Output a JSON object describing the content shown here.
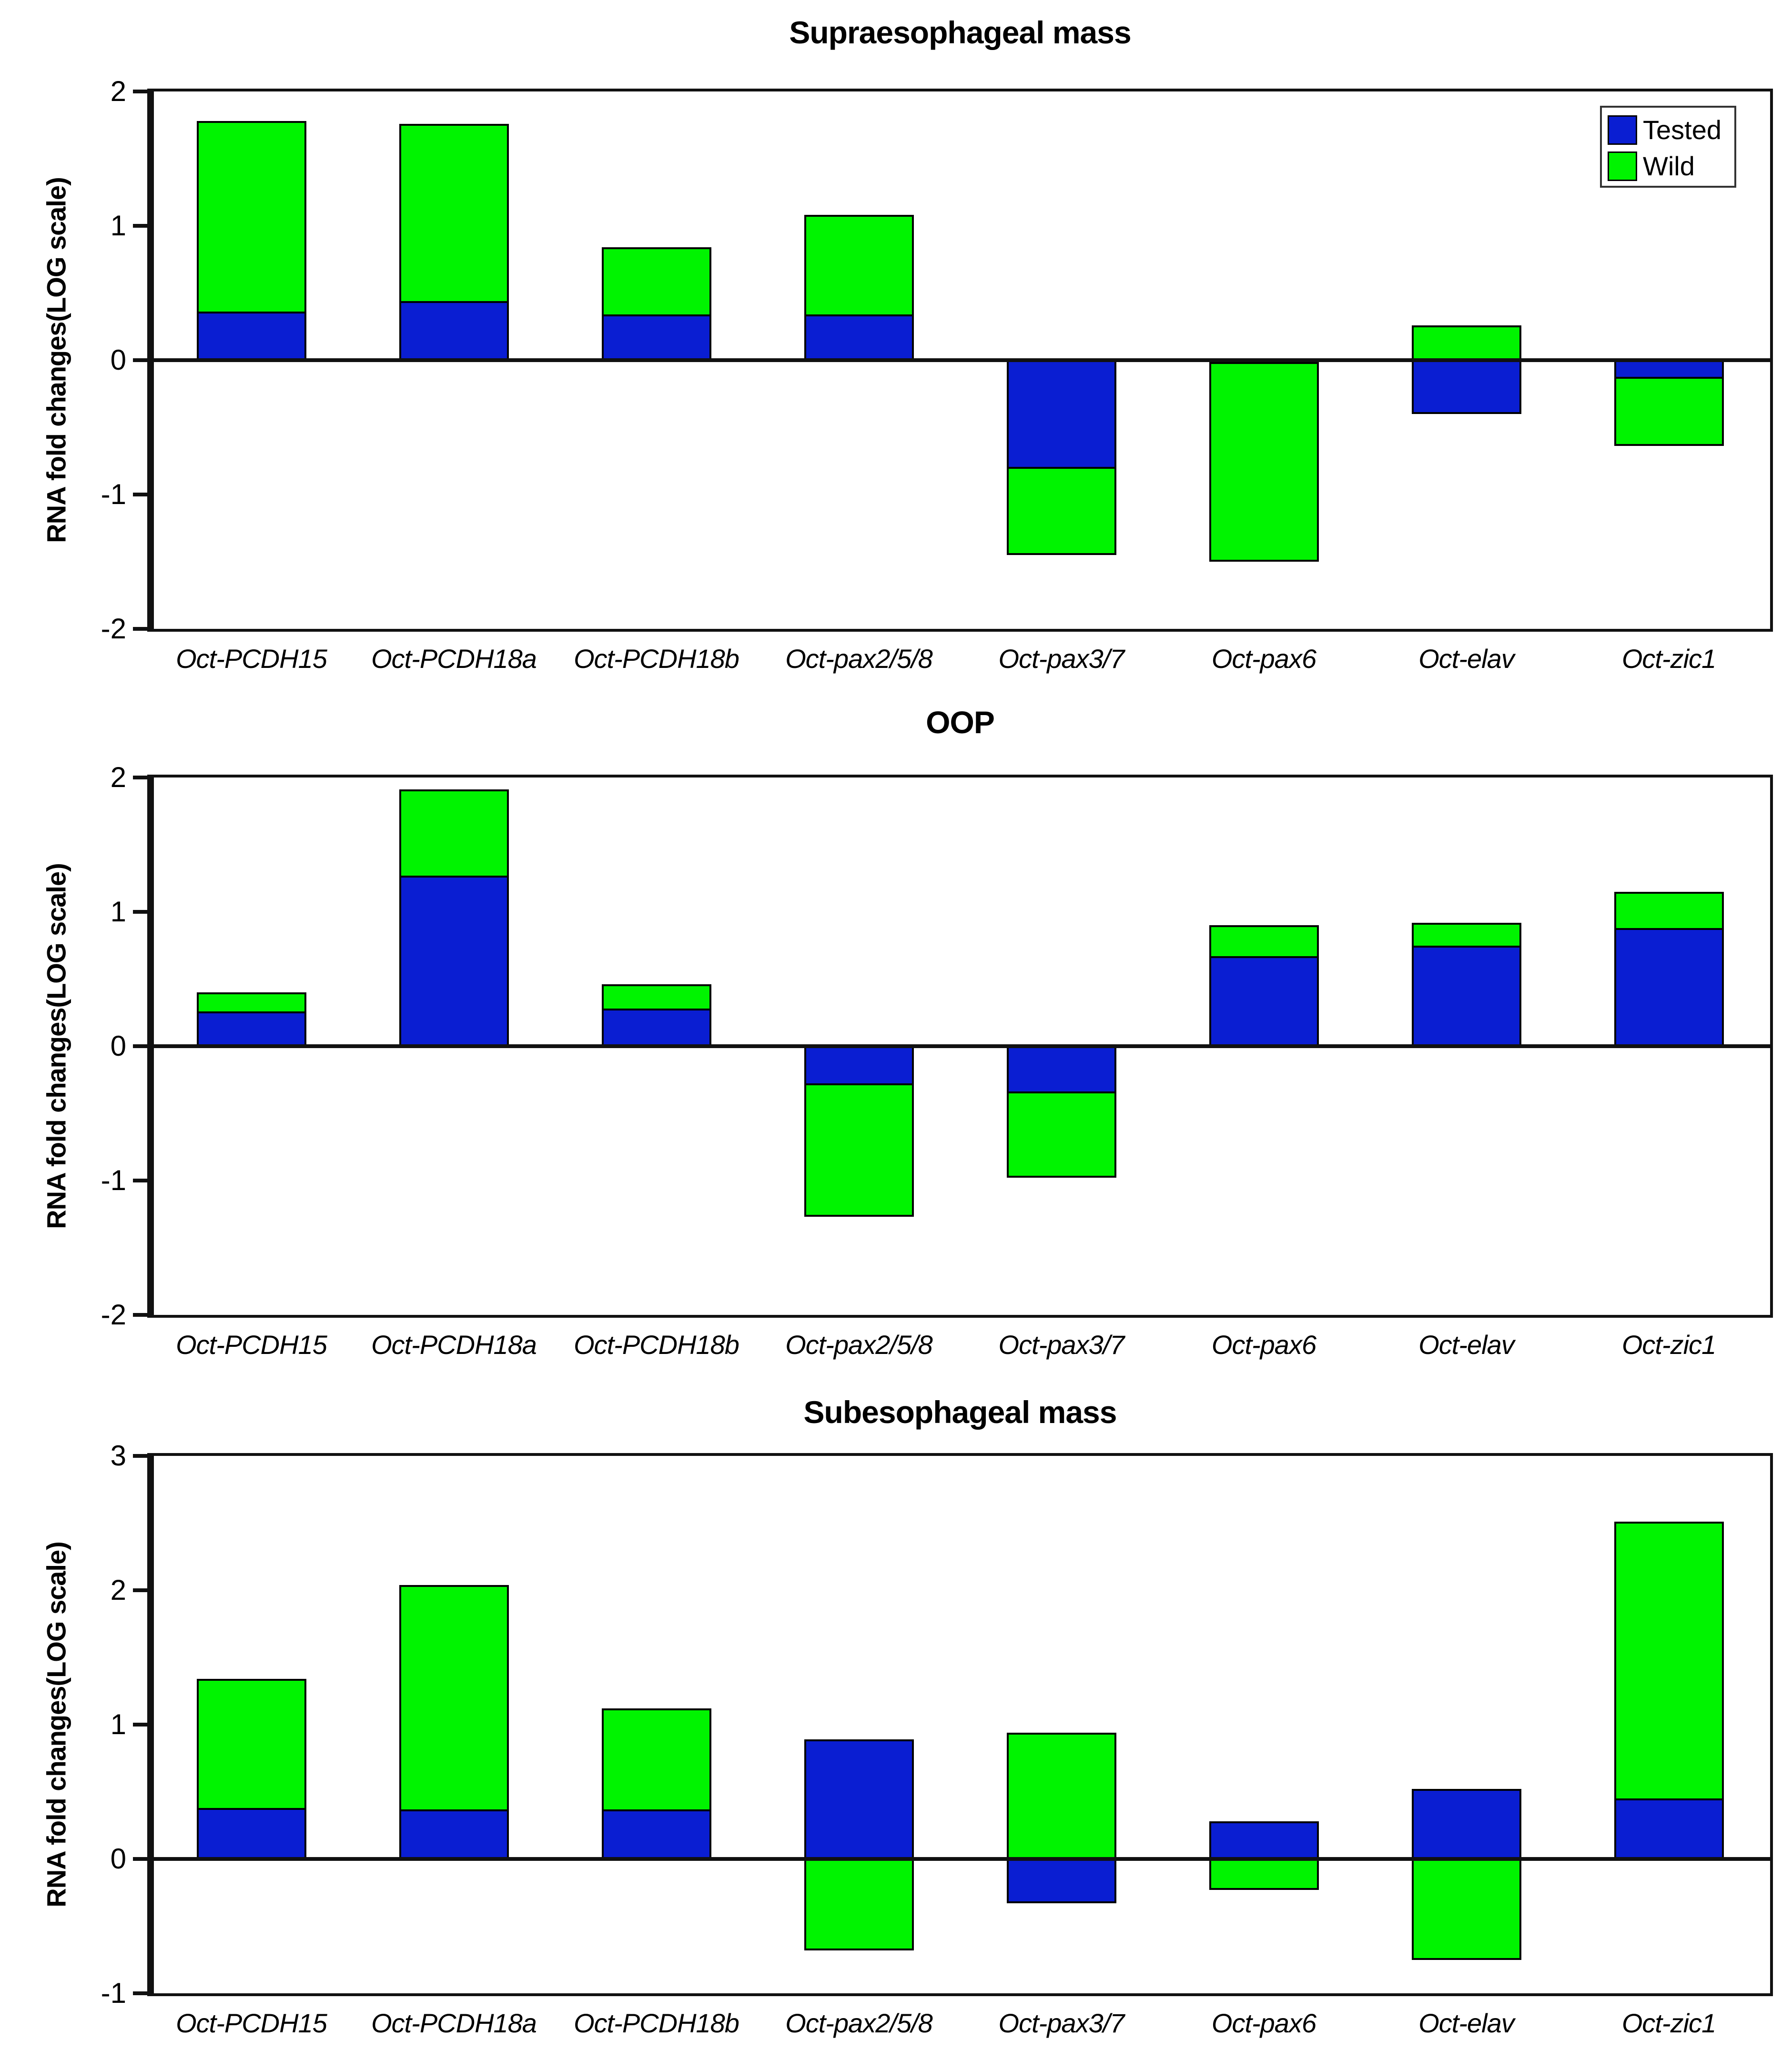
{
  "page": {
    "background": "#ffffff"
  },
  "colors": {
    "tested": "#0a1ed2",
    "wild": "#00f400",
    "bar_border": "#000000",
    "axis": "#111111"
  },
  "legend": {
    "position": "top-right-of-first-chart",
    "items": [
      {
        "label": "Tested",
        "color_key": "tested"
      },
      {
        "label": "Wild",
        "color_key": "wild"
      }
    ]
  },
  "chart_data": [
    {
      "type": "bar",
      "barmode": "overlay",
      "title": "Supraesophageal mass",
      "ylabel": "RNA fold changes(LOG scale)",
      "xlabel": "",
      "ylim": [
        -2,
        2
      ],
      "yticks": [
        2,
        1,
        0,
        -1,
        -2
      ],
      "grid": false,
      "legend_position": "top-right-inside",
      "categories": [
        "Oct-PCDH15",
        "Oct-PCDH18a",
        "Oct-PCDH18b",
        "Oct-pax2/5/8",
        "Oct-pax3/7",
        "Oct-pax6",
        "Oct-elav",
        "Oct-zic1"
      ],
      "series": [
        {
          "name": "Tested",
          "color_key": "tested",
          "values": [
            0.36,
            0.44,
            0.34,
            0.34,
            -0.81,
            -0.02,
            -0.4,
            -0.14
          ]
        },
        {
          "name": "Wild",
          "color_key": "wild",
          "values": [
            1.78,
            1.76,
            0.84,
            1.08,
            -1.45,
            -1.5,
            0.26,
            -0.64
          ]
        }
      ]
    },
    {
      "type": "bar",
      "barmode": "overlay",
      "title": "OOP",
      "ylabel": "RNA fold changes(LOG scale)",
      "xlabel": "",
      "ylim": [
        -2,
        2
      ],
      "yticks": [
        2,
        1,
        0,
        -1,
        -2
      ],
      "grid": false,
      "legend_position": "none",
      "categories": [
        "Oct-PCDH15",
        "Oct-PCDH18a",
        "Oct-PCDH18b",
        "Oct-pax2/5/8",
        "Oct-pax3/7",
        "Oct-pax6",
        "Oct-elav",
        "Oct-zic1"
      ],
      "series": [
        {
          "name": "Tested",
          "color_key": "tested",
          "values": [
            0.26,
            1.27,
            0.28,
            -0.29,
            -0.35,
            0.67,
            0.75,
            0.88
          ]
        },
        {
          "name": "Wild",
          "color_key": "wild",
          "values": [
            0.4,
            1.91,
            0.46,
            -1.27,
            -0.98,
            0.9,
            0.92,
            1.15
          ]
        }
      ]
    },
    {
      "type": "bar",
      "barmode": "overlay",
      "title": "Subesophageal mass",
      "ylabel": "RNA fold changes(LOG scale)",
      "xlabel": "",
      "ylim": [
        -1,
        3
      ],
      "yticks": [
        3,
        2,
        1,
        0,
        -1
      ],
      "grid": false,
      "legend_position": "none",
      "categories": [
        "Oct-PCDH15",
        "Oct-PCDH18a",
        "Oct-PCDH18b",
        "Oct-pax2/5/8",
        "Oct-pax3/7",
        "Oct-pax6",
        "Oct-elav",
        "Oct-zic1"
      ],
      "series": [
        {
          "name": "Tested",
          "color_key": "tested",
          "values": [
            0.38,
            0.37,
            0.37,
            0.89,
            -0.33,
            0.28,
            0.52,
            0.45
          ]
        },
        {
          "name": "Wild",
          "color_key": "wild",
          "values": [
            1.34,
            2.04,
            1.12,
            -0.68,
            0.94,
            -0.23,
            -0.75,
            2.51
          ]
        }
      ]
    }
  ]
}
